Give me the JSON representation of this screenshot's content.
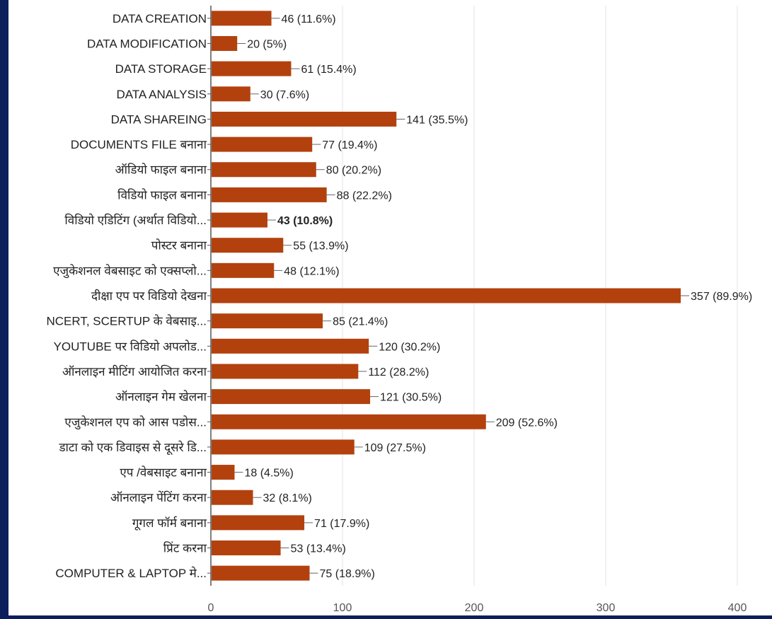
{
  "chart_data": {
    "type": "bar",
    "orientation": "horizontal",
    "categories": [
      "DATA CREATION",
      "DATA MODIFICATION",
      "DATA STORAGE",
      "DATA ANALYSIS",
      "DATA SHAREING",
      "DOCUMENTS FILE बनाना",
      "ऑडियो फाइल बनाना",
      "विडियो फाइल बनाना",
      "विडियो एडिटिंग (अर्थात विडियो...",
      "पोस्टर बनाना",
      "एजुकेशनल वेबसाइट को एक्सप्लो...",
      "दीक्षा एप पर विडियो देखना",
      "NCERT, SCERTUP के वेबसाइ...",
      "YOUTUBE पर विडियो अपलोड...",
      "ऑनलाइन मीटिंग आयोजित करना",
      "ऑनलाइन गेम खेलना",
      "एजुकेशनल एप को आस पडोस...",
      "डाटा को एक डिवाइस से दूसरे डि...",
      "एप /वेबसाइट बनाना",
      "ऑनलाइन पेंटिंग करना",
      "गूगल फॉर्म बनाना",
      "प्रिंट करना",
      "COMPUTER & LAPTOP मे..."
    ],
    "values": [
      46,
      20,
      61,
      30,
      141,
      77,
      80,
      88,
      43,
      55,
      48,
      357,
      85,
      120,
      112,
      121,
      209,
      109,
      18,
      32,
      71,
      53,
      75
    ],
    "data_labels": [
      "46 (11.6%)",
      "20 (5%)",
      "61 (15.4%)",
      "30 (7.6%)",
      "141 (35.5%)",
      "77 (19.4%)",
      "80 (20.2%)",
      "88 (22.2%)",
      "43 (10.8%)",
      "55 (13.9%)",
      "48 (12.1%)",
      "357 (89.9%)",
      "85 (21.4%)",
      "120 (30.2%)",
      "112 (28.2%)",
      "121 (30.5%)",
      "209 (52.6%)",
      "109 (27.5%)",
      "18 (4.5%)",
      "32 (8.1%)",
      "71 (17.9%)",
      "53 (13.4%)",
      "75 (18.9%)"
    ],
    "bold_label_index": 8,
    "xlim": [
      0,
      400
    ],
    "xticks": [
      0,
      100,
      200,
      300,
      400
    ],
    "grid": "vertical",
    "legend": "none",
    "bar_color": "#b3410e",
    "grid_color": "#e3e3e3",
    "axis_color": "#555555"
  }
}
